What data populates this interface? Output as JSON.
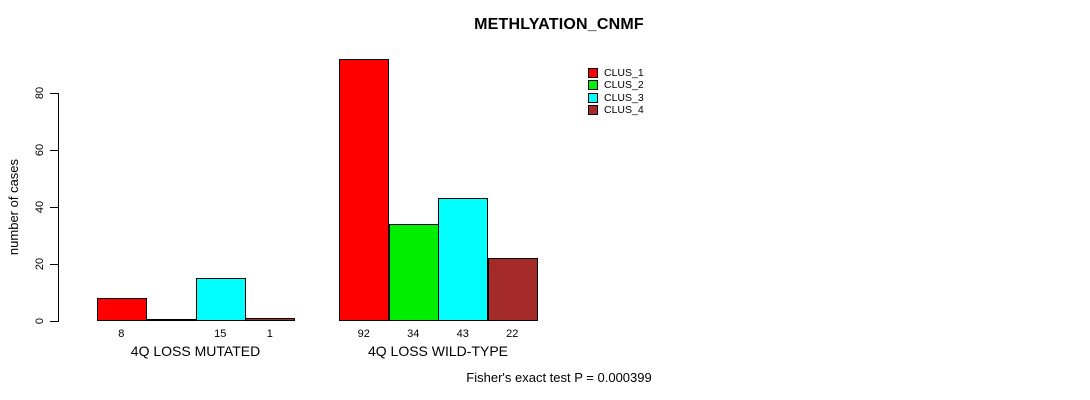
{
  "chart_data": {
    "type": "bar",
    "title": "METHLYATION_CNMF",
    "ylabel": "number of cases",
    "xlabel": "",
    "ylim": [
      0,
      80
    ],
    "yticks": [
      0,
      20,
      40,
      60,
      80
    ],
    "grid": false,
    "legend_position": "top-right",
    "series": [
      {
        "name": "CLUS_1",
        "color": "#ff0000"
      },
      {
        "name": "CLUS_2",
        "color": "#00ee00"
      },
      {
        "name": "CLUS_3",
        "color": "#00ffff"
      },
      {
        "name": "CLUS_4",
        "color": "#a52a2a"
      }
    ],
    "categories": [
      "4Q LOSS MUTATED",
      "4Q LOSS WILD-TYPE"
    ],
    "groups": [
      {
        "label": "4Q LOSS MUTATED",
        "values": [
          8,
          0,
          15,
          1
        ],
        "bar_labels": [
          "8",
          "",
          "15",
          "1"
        ]
      },
      {
        "label": "4Q LOSS WILD-TYPE",
        "values": [
          92,
          34,
          43,
          22
        ],
        "bar_labels": [
          "92",
          "34",
          "43",
          "22"
        ]
      }
    ],
    "annotation": "Fisher's exact test P = 0.000399"
  }
}
